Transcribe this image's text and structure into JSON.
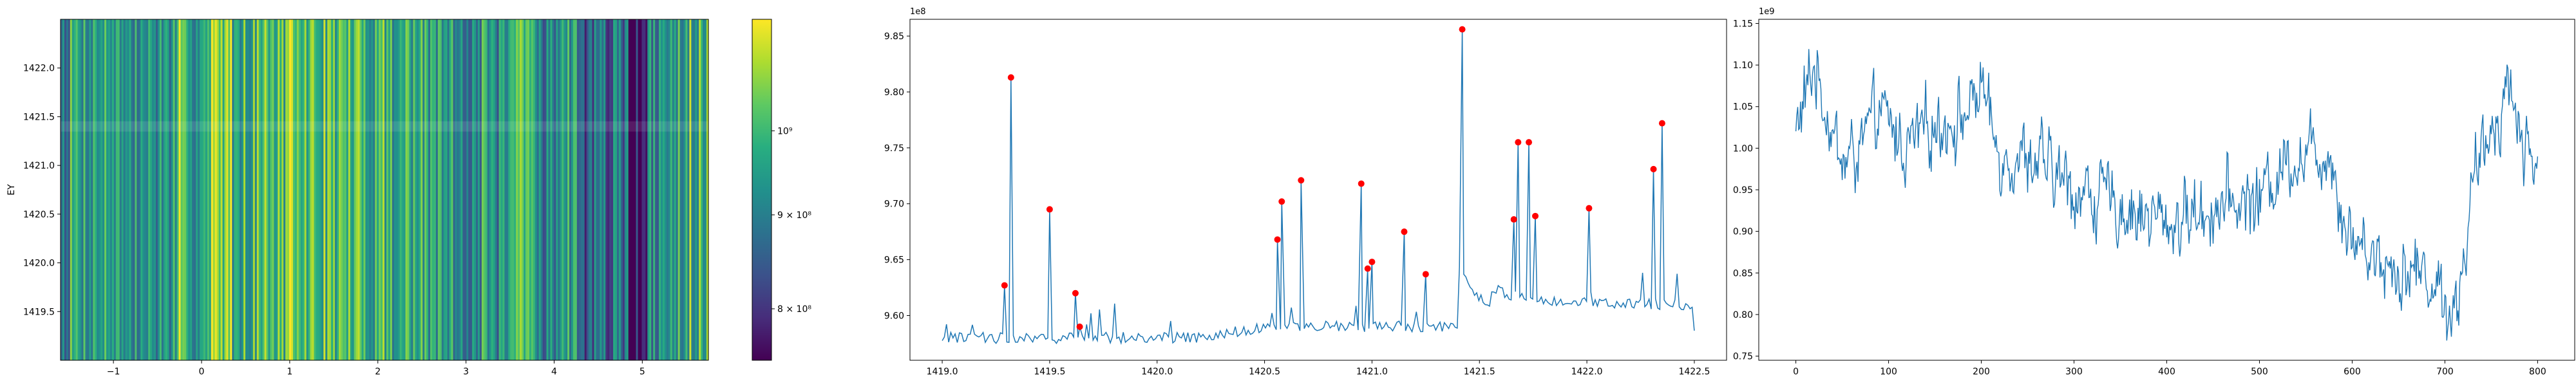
{
  "chart_data": [
    {
      "type": "heatmap",
      "title": "",
      "xlabel": "",
      "ylabel": "EY",
      "xlim": [
        -1.6,
        5.75
      ],
      "ylim": [
        1419.0,
        1422.5
      ],
      "x_ticks": [
        -1,
        0,
        1,
        2,
        3,
        4,
        5
      ],
      "x_tick_labels": [
        "−1",
        "0",
        "1",
        "2",
        "3",
        "4",
        "5"
      ],
      "y_ticks": [
        1419.5,
        1420.0,
        1420.5,
        1421.0,
        1421.5,
        1422.0
      ],
      "y_tick_labels": [
        "1419.5",
        "1420.0",
        "1420.5",
        "1421.0",
        "1421.5",
        "1422.0"
      ],
      "colormap": "viridis",
      "colorbar": {
        "scale": "log",
        "range": [
          750000000.0,
          1150000000.0
        ],
        "ticks": [
          800000000.0,
          900000000.0,
          1000000000.0
        ],
        "tick_labels": [
          "8 × 10⁸",
          "9 × 10⁸",
          "10⁹"
        ]
      },
      "columns": 340,
      "bright_band_y": 1421.4
    },
    {
      "type": "line",
      "title": "",
      "xlabel": "",
      "ylabel": "",
      "offset_label": "1e8",
      "xlim": [
        1418.85,
        1422.65
      ],
      "ylim": [
        9.56,
        9.865
      ],
      "x_ticks": [
        1419.0,
        1419.5,
        1420.0,
        1420.5,
        1421.0,
        1421.5,
        1422.0,
        1422.5
      ],
      "x_tick_labels": [
        "1419.0",
        "1419.5",
        "1420.0",
        "1420.5",
        "1421.0",
        "1421.5",
        "1422.0",
        "1422.5"
      ],
      "y_ticks": [
        9.6,
        9.65,
        9.7,
        9.75,
        9.8,
        9.85
      ],
      "y_tick_labels": [
        "9.60",
        "9.65",
        "9.70",
        "9.75",
        "9.80",
        "9.85"
      ],
      "line_color": "#1f77b4",
      "peak_color": "#ff0000",
      "x_start": 1419.0,
      "x_end": 1422.5,
      "points": 350,
      "baseline": 9.575,
      "peaks": [
        {
          "x": 1419.29,
          "y": 9.627
        },
        {
          "x": 1419.32,
          "y": 9.813
        },
        {
          "x": 1419.5,
          "y": 9.695
        },
        {
          "x": 1419.62,
          "y": 9.62
        },
        {
          "x": 1419.64,
          "y": 9.59
        },
        {
          "x": 1420.56,
          "y": 9.668
        },
        {
          "x": 1420.58,
          "y": 9.702
        },
        {
          "x": 1420.67,
          "y": 9.721
        },
        {
          "x": 1420.95,
          "y": 9.718
        },
        {
          "x": 1420.98,
          "y": 9.642
        },
        {
          "x": 1421.0,
          "y": 9.648
        },
        {
          "x": 1421.15,
          "y": 9.675
        },
        {
          "x": 1421.25,
          "y": 9.637
        },
        {
          "x": 1421.42,
          "y": 9.856
        },
        {
          "x": 1421.66,
          "y": 9.686
        },
        {
          "x": 1421.68,
          "y": 9.755
        },
        {
          "x": 1421.73,
          "y": 9.755
        },
        {
          "x": 1421.76,
          "y": 9.689
        },
        {
          "x": 1422.01,
          "y": 9.696
        },
        {
          "x": 1422.31,
          "y": 9.731
        },
        {
          "x": 1422.35,
          "y": 9.772
        }
      ]
    },
    {
      "type": "line",
      "title": "",
      "xlabel": "",
      "ylabel": "",
      "offset_label": "1e9",
      "xlim": [
        -40,
        840
      ],
      "ylim": [
        0.745,
        1.155
      ],
      "x_ticks": [
        0,
        100,
        200,
        300,
        400,
        500,
        600,
        700,
        800
      ],
      "x_tick_labels": [
        "0",
        "100",
        "200",
        "300",
        "400",
        "500",
        "600",
        "700",
        "800"
      ],
      "y_ticks": [
        0.75,
        0.8,
        0.85,
        0.9,
        0.95,
        1.0,
        1.05,
        1.1,
        1.15
      ],
      "y_tick_labels": [
        "0.75",
        "0.80",
        "0.85",
        "0.90",
        "0.95",
        "1.00",
        "1.05",
        "1.10",
        "1.15"
      ],
      "line_color": "#1f77b4",
      "x_start": 0,
      "x_end": 800,
      "points": 801,
      "trend": [
        {
          "x": 0,
          "y": 1.02
        },
        {
          "x": 20,
          "y": 1.1
        },
        {
          "x": 50,
          "y": 0.98
        },
        {
          "x": 70,
          "y": 1.0
        },
        {
          "x": 90,
          "y": 1.04
        },
        {
          "x": 120,
          "y": 1.0
        },
        {
          "x": 150,
          "y": 1.03
        },
        {
          "x": 185,
          "y": 1.04
        },
        {
          "x": 200,
          "y": 1.08
        },
        {
          "x": 215,
          "y": 1.0
        },
        {
          "x": 250,
          "y": 0.99
        },
        {
          "x": 300,
          "y": 0.95
        },
        {
          "x": 350,
          "y": 0.93
        },
        {
          "x": 400,
          "y": 0.91
        },
        {
          "x": 450,
          "y": 0.93
        },
        {
          "x": 500,
          "y": 0.94
        },
        {
          "x": 530,
          "y": 0.99
        },
        {
          "x": 575,
          "y": 1.0
        },
        {
          "x": 595,
          "y": 0.9
        },
        {
          "x": 640,
          "y": 0.86
        },
        {
          "x": 680,
          "y": 0.85
        },
        {
          "x": 700,
          "y": 0.82
        },
        {
          "x": 712,
          "y": 0.8
        },
        {
          "x": 730,
          "y": 0.95
        },
        {
          "x": 755,
          "y": 1.04
        },
        {
          "x": 770,
          "y": 1.08
        },
        {
          "x": 785,
          "y": 1.0
        },
        {
          "x": 800,
          "y": 0.99
        }
      ]
    }
  ]
}
